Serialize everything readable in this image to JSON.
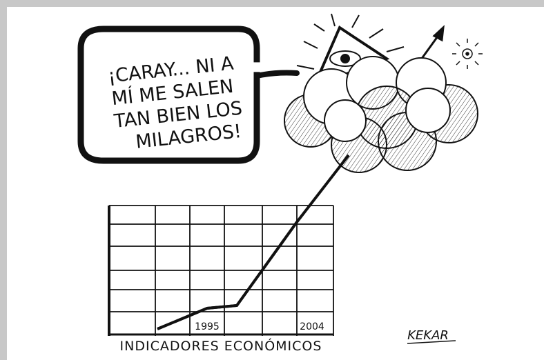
{
  "speech_bubble": {
    "lines": [
      "¡CARAY... NI A",
      "MÍ ME SALEN",
      "TAN BIEN LOS",
      "MILAGROS!"
    ]
  },
  "chart": {
    "x_labels": [
      "1995",
      "2004"
    ],
    "title": "INDICADORES ECONÓMICOS"
  },
  "signature": "KEKAR"
}
